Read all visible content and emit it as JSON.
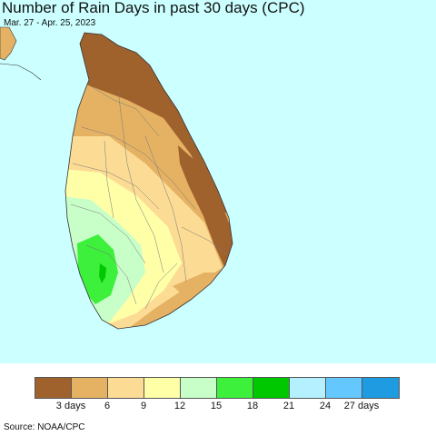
{
  "map": {
    "title": "Number of Rain Days in past 30 days (CPC)",
    "subtitle": "Mar. 27 - Apr. 25, 2023",
    "ocean_color": "#ccffff",
    "region_shown": "Sri Lanka"
  },
  "legend": {
    "colors": [
      "#a0622d",
      "#e5b264",
      "#fcdc94",
      "#ffffa8",
      "#c8ffc8",
      "#3cf03c",
      "#00c800",
      "#b4f0ff",
      "#64c8ff",
      "#1e9be1"
    ],
    "ticks": [
      "3 days",
      "6",
      "9",
      "12",
      "15",
      "18",
      "21",
      "24",
      "27 days"
    ]
  },
  "source": "Source: NOAA/CPC"
}
